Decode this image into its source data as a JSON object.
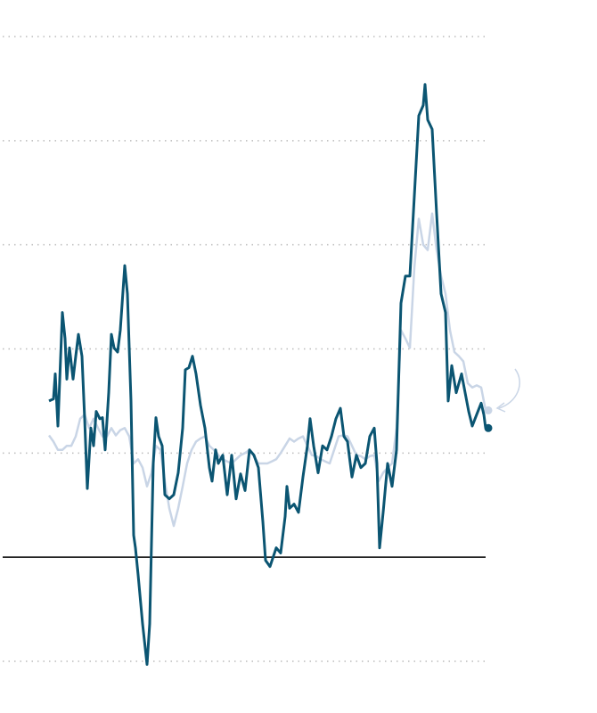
{
  "chart_data": {
    "type": "line",
    "series": [
      {
        "color": "#c9d5e6",
        "x": [
          0,
          5,
          10,
          15,
          20,
          25,
          30,
          35,
          40,
          45,
          50,
          55,
          60,
          65,
          70,
          75,
          80,
          85,
          90,
          95,
          100,
          105,
          110,
          115,
          120,
          125,
          130,
          135,
          140,
          145,
          150,
          155,
          160,
          165,
          170,
          175,
          180,
          185,
          190,
          195,
          200,
          205,
          210,
          215,
          220,
          225,
          230,
          235,
          240,
          245,
          250,
          255,
          260,
          265,
          270,
          275,
          280,
          285,
          290,
          295,
          300,
          305,
          310,
          315,
          320,
          325,
          330,
          335,
          340,
          345,
          350,
          355,
          360,
          365,
          370,
          375,
          380,
          385,
          390,
          395,
          400,
          405,
          410,
          415,
          420,
          425,
          430,
          435,
          440,
          445,
          450,
          455,
          460,
          465,
          470,
          475,
          480,
          485,
          490
        ],
        "values": [
          1.17,
          1.11,
          1.03,
          1.03,
          1.07,
          1.07,
          1.16,
          1.33,
          1.37,
          1.24,
          1.33,
          1.24,
          1.16,
          1.16,
          1.24,
          1.17,
          1.22,
          1.24,
          1.16,
          0.9,
          0.94,
          0.86,
          0.68,
          0.81,
          1.07,
          1.03,
          0.73,
          0.47,
          0.3,
          0.47,
          0.68,
          0.9,
          1.03,
          1.11,
          1.14,
          1.16,
          1.07,
          1.03,
          0.98,
          0.94,
          0.92,
          0.9,
          0.94,
          0.98,
          1.0,
          1.03,
          0.97,
          0.9,
          0.9,
          0.9,
          0.92,
          0.94,
          1.0,
          1.07,
          1.14,
          1.11,
          1.14,
          1.16,
          1.07,
          0.98,
          0.97,
          0.94,
          0.92,
          0.9,
          1.03,
          1.16,
          1.17,
          1.16,
          1.07,
          0.98,
          0.97,
          0.94,
          0.97,
          0.98,
          0.73,
          0.81,
          0.86,
          0.9,
          1.24,
          2.18,
          2.1,
          2.01,
          2.78,
          3.25,
          3.0,
          2.95,
          3.3,
          2.95,
          2.7,
          2.53,
          2.18,
          1.97,
          1.93,
          1.88,
          1.67,
          1.63,
          1.65,
          1.63,
          1.41
        ]
      },
      {
        "color": "#0b5572",
        "x": [
          0,
          5,
          7,
          10,
          15,
          18,
          20,
          23,
          27,
          30,
          33,
          37,
          40,
          43,
          47,
          50,
          53,
          57,
          60,
          63,
          67,
          70,
          73,
          77,
          80,
          85,
          88,
          92,
          95,
          97,
          100,
          105,
          110,
          113,
          117,
          120,
          123,
          127,
          130,
          135,
          140,
          145,
          150,
          153,
          157,
          161,
          165,
          170,
          175,
          180,
          183,
          187,
          190,
          195,
          200,
          205,
          210,
          215,
          220,
          225,
          230,
          235,
          240,
          243,
          248,
          255,
          260,
          265,
          267,
          270,
          275,
          280,
          285,
          290,
          293,
          297,
          302,
          307,
          312,
          317,
          322,
          327,
          331,
          335,
          340,
          345,
          350,
          355,
          360,
          365,
          368,
          371,
          375,
          380,
          385,
          390,
          395,
          400,
          405,
          410,
          415,
          420,
          422,
          425,
          430,
          435,
          440,
          445,
          448,
          452,
          457,
          463,
          467,
          471,
          475,
          480,
          485,
          488,
          490
        ],
        "values": [
          1.5,
          1.52,
          1.76,
          1.26,
          2.35,
          2.1,
          1.71,
          2.01,
          1.71,
          1.93,
          2.14,
          1.93,
          1.33,
          0.66,
          1.24,
          1.07,
          1.4,
          1.33,
          1.34,
          1.03,
          1.58,
          2.14,
          2.01,
          1.97,
          2.18,
          2.8,
          2.53,
          1.5,
          0.21,
          0.09,
          -0.17,
          -0.64,
          -1.03,
          -0.64,
          0.9,
          1.34,
          1.16,
          1.07,
          0.6,
          0.56,
          0.6,
          0.81,
          1.24,
          1.8,
          1.82,
          1.93,
          1.76,
          1.46,
          1.24,
          0.86,
          0.73,
          1.03,
          0.9,
          0.98,
          0.6,
          0.98,
          0.56,
          0.8,
          0.64,
          1.03,
          0.98,
          0.86,
          0.34,
          -0.03,
          -0.09,
          0.09,
          0.04,
          0.39,
          0.68,
          0.47,
          0.51,
          0.43,
          0.77,
          1.07,
          1.33,
          1.07,
          0.81,
          1.07,
          1.03,
          1.16,
          1.33,
          1.43,
          1.16,
          1.11,
          0.77,
          0.98,
          0.86,
          0.9,
          1.16,
          1.24,
          0.9,
          0.09,
          0.43,
          0.9,
          0.68,
          1.03,
          2.44,
          2.7,
          2.7,
          3.47,
          4.24,
          4.34,
          4.54,
          4.2,
          4.11,
          3.3,
          2.53,
          2.35,
          1.5,
          1.84,
          1.58,
          1.76,
          1.58,
          1.4,
          1.26,
          1.37,
          1.48,
          1.37,
          1.24
        ]
      }
    ],
    "xlim": [
      0,
      490
    ],
    "ylim": [
      -1,
      5
    ],
    "yticks": [
      -1,
      0,
      1,
      2,
      3,
      4,
      5
    ],
    "grid": true
  }
}
